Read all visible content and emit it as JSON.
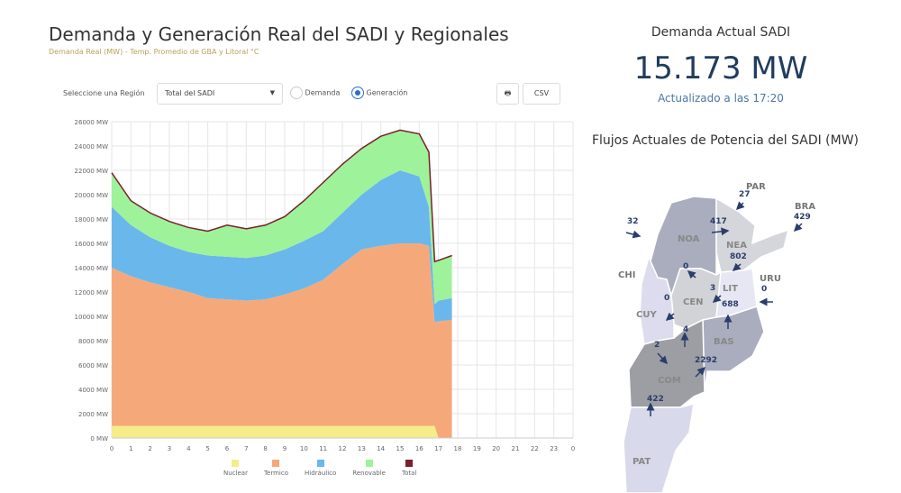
{
  "header": {
    "title": "Demanda y Generación Real del SADI y Regionales",
    "subtitle": "Demanda Real (MW) - Temp. Promedio de GBA y Litoral °C"
  },
  "controls": {
    "region_label": "Seleccione una Región",
    "region_value": "Total del SADI",
    "radio_demanda": "Demanda",
    "radio_generacion": "Generación",
    "selected": "Generación",
    "print_icon": "print-icon",
    "csv_label": "CSV"
  },
  "chart_data": {
    "type": "area",
    "stacked": true,
    "xlabel": "",
    "ylabel": "",
    "xlim": [
      0,
      24
    ],
    "ylim": [
      0,
      26000
    ],
    "x_ticks": [
      "0",
      "1",
      "2",
      "3",
      "4",
      "5",
      "6",
      "7",
      "8",
      "9",
      "10",
      "11",
      "12",
      "13",
      "14",
      "15",
      "16",
      "17",
      "18",
      "19",
      "20",
      "21",
      "22",
      "23",
      "0"
    ],
    "y_ticks": [
      "0 MW",
      "2000 MW",
      "4000 MW",
      "6000 MW",
      "8000 MW",
      "10000 MW",
      "12000 MW",
      "14000 MW",
      "16000 MW",
      "18000 MW",
      "20000 MW",
      "22000 MW",
      "24000 MW",
      "26000 MW"
    ],
    "grid": true,
    "legend": "bottom",
    "x": [
      0,
      1,
      2,
      3,
      4,
      5,
      6,
      7,
      8,
      9,
      10,
      11,
      12,
      13,
      14,
      15,
      16,
      16.5,
      16.8,
      17,
      17.7
    ],
    "series": [
      {
        "name": "Nuclear",
        "color": "#f5ec8a",
        "values": [
          1000,
          1000,
          1000,
          1000,
          1000,
          1000,
          1000,
          1000,
          1000,
          1000,
          1000,
          1000,
          1000,
          1000,
          1000,
          1000,
          1000,
          1000,
          1000,
          0,
          0
        ]
      },
      {
        "name": "Termico",
        "color": "#f5a97a",
        "values": [
          13000,
          12300,
          11800,
          11400,
          11000,
          10500,
          10400,
          10300,
          10400,
          10800,
          11300,
          12000,
          13300,
          14500,
          14800,
          15000,
          15000,
          14800,
          8500,
          9600,
          9700
        ]
      },
      {
        "name": "Hidráulico",
        "color": "#6ab7ec",
        "values": [
          5000,
          4200,
          3700,
          3400,
          3300,
          3500,
          3500,
          3500,
          3600,
          3700,
          3900,
          4000,
          4200,
          4500,
          5400,
          6000,
          5500,
          3200,
          1500,
          1700,
          1800
        ]
      },
      {
        "name": "Renovable",
        "color": "#9ef29a",
        "values": [
          2800,
          2000,
          2000,
          2000,
          2000,
          2000,
          2600,
          2400,
          2500,
          2700,
          3300,
          4000,
          4000,
          3800,
          3600,
          3300,
          3500,
          4500,
          3500,
          3300,
          3500
        ]
      },
      {
        "name": "Total",
        "color": "#7a1f2b",
        "line": true
      }
    ]
  },
  "demand": {
    "title": "Demanda Actual SADI",
    "value": "15.173 MW",
    "updated": "Actualizado a las 17:20"
  },
  "flows": {
    "title": "Flujos Actuales de Potencia del SADI (MW)",
    "regions": [
      "NOA",
      "NEA",
      "CEN",
      "LIT",
      "CUY",
      "BAS",
      "COM",
      "PAT"
    ],
    "countries": [
      "PAR",
      "BRA",
      "CHI",
      "URU"
    ],
    "values": {
      "PAR": "27",
      "BRA": "429",
      "CHI": "32",
      "NOA-NEA": "417",
      "NEA-LIT": "802",
      "NOA-CEN": "0",
      "CUY-CEN": "0",
      "LIT-CEN": "3",
      "URU": "0",
      "BAS-LIT": "688",
      "COM-CEN": "4",
      "CUY-COM": "2",
      "COM-BAS": "2292",
      "PAT-COM": "422"
    }
  }
}
